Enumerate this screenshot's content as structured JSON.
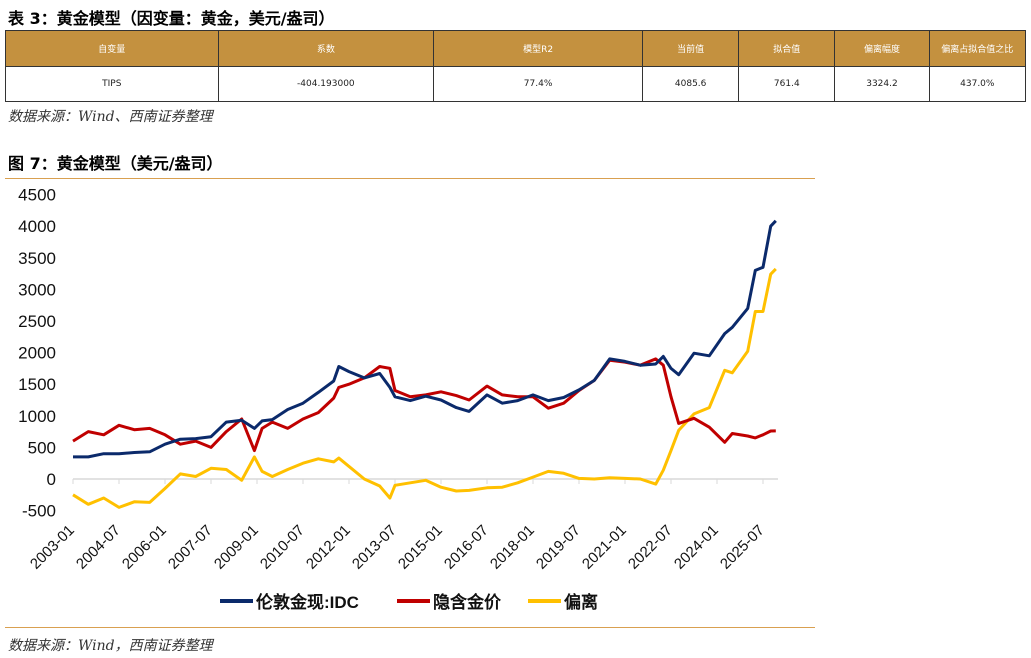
{
  "table_title": "表 3：黄金模型（因变量：黄金，美元/盎司）",
  "table": {
    "headers": [
      "自变量",
      "系数",
      "模型R2",
      "当前值",
      "拟合值",
      "偏离幅度",
      "偏离占拟合值之比"
    ],
    "rows": [
      [
        "TIPS",
        "-404.193000",
        "77.4%",
        "4085.6",
        "761.4",
        "3324.2",
        "437.0%"
      ]
    ]
  },
  "table_source": "数据来源：Wind、西南证券整理",
  "figure_title": "图 7：黄金模型（美元/盎司）",
  "figure_source": "数据来源：Wind，西南证券整理",
  "colors": {
    "header": "#C4913F",
    "rule": "#D9A050",
    "blue": "#0B2A6B",
    "red": "#C00000",
    "yellow": "#FFC000"
  },
  "chart_data": {
    "type": "line",
    "ylim": [
      -500,
      4500
    ],
    "yticks": [
      "4500",
      "4000",
      "3500",
      "3000",
      "2500",
      "2000",
      "1500",
      "1000",
      "500",
      "0",
      "-500"
    ],
    "xticks": [
      "2003-01",
      "2004-07",
      "2006-01",
      "2007-07",
      "2009-01",
      "2010-07",
      "2012-01",
      "2013-07",
      "2015-01",
      "2016-07",
      "2018-01",
      "2019-07",
      "2021-01",
      "2022-07",
      "2024-01",
      "2025-07"
    ],
    "legend_position": "bottom",
    "x": [
      "2003-01",
      "2003-07",
      "2004-01",
      "2004-07",
      "2005-01",
      "2005-07",
      "2006-01",
      "2006-07",
      "2007-01",
      "2007-07",
      "2008-01",
      "2008-07",
      "2008-12",
      "2009-03",
      "2009-07",
      "2010-01",
      "2010-07",
      "2011-01",
      "2011-07",
      "2011-09",
      "2012-01",
      "2012-07",
      "2013-01",
      "2013-05",
      "2013-07",
      "2014-01",
      "2014-07",
      "2015-01",
      "2015-07",
      "2015-12",
      "2016-07",
      "2017-01",
      "2017-07",
      "2018-01",
      "2018-07",
      "2019-01",
      "2019-07",
      "2020-01",
      "2020-07",
      "2021-01",
      "2021-07",
      "2022-01",
      "2022-04",
      "2022-07",
      "2022-10",
      "2023-04",
      "2023-10",
      "2024-04",
      "2024-07",
      "2025-01",
      "2025-04",
      "2025-07",
      "2025-10",
      "2025-12"
    ],
    "series": [
      {
        "name": "伦敦金现:IDC",
        "color": "#0B2A6B",
        "values": [
          350,
          350,
          400,
          400,
          420,
          430,
          550,
          630,
          640,
          670,
          900,
          930,
          800,
          920,
          940,
          1100,
          1200,
          1370,
          1550,
          1780,
          1700,
          1600,
          1670,
          1450,
          1300,
          1240,
          1310,
          1250,
          1130,
          1070,
          1330,
          1200,
          1240,
          1330,
          1240,
          1290,
          1410,
          1560,
          1900,
          1860,
          1800,
          1820,
          1940,
          1750,
          1650,
          1990,
          1950,
          2300,
          2400,
          2700,
          3300,
          3350,
          4000,
          4085.6
        ]
      },
      {
        "name": "隐含金价",
        "color": "#C00000",
        "values": [
          600,
          750,
          700,
          850,
          780,
          800,
          700,
          550,
          600,
          500,
          750,
          950,
          450,
          800,
          900,
          800,
          950,
          1050,
          1280,
          1450,
          1500,
          1600,
          1780,
          1750,
          1400,
          1300,
          1330,
          1380,
          1320,
          1250,
          1470,
          1330,
          1300,
          1300,
          1120,
          1200,
          1400,
          1560,
          1880,
          1850,
          1800,
          1900,
          1800,
          1300,
          880,
          960,
          820,
          580,
          720,
          680,
          650,
          700,
          760,
          761.4
        ]
      },
      {
        "name": "偏离",
        "color": "#FFC000",
        "values": [
          -250,
          -400,
          -300,
          -450,
          -360,
          -370,
          -150,
          80,
          40,
          170,
          150,
          -20,
          350,
          120,
          40,
          150,
          250,
          320,
          270,
          330,
          200,
          0,
          -110,
          -300,
          -100,
          -60,
          -20,
          -130,
          -190,
          -180,
          -140,
          -130,
          -60,
          30,
          120,
          90,
          10,
          0,
          20,
          10,
          0,
          -80,
          140,
          450,
          770,
          1030,
          1130,
          1720,
          1680,
          2020,
          2650,
          2650,
          3240,
          3324.2
        ]
      }
    ]
  }
}
